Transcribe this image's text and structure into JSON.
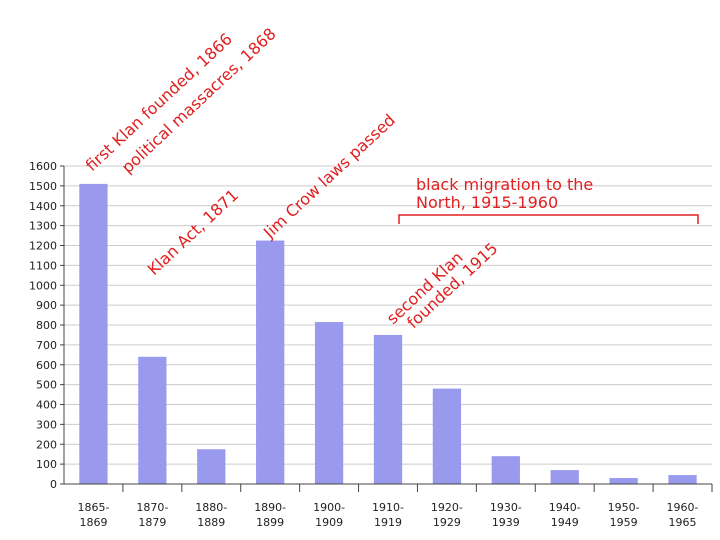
{
  "chart_data": {
    "type": "bar",
    "categories": [
      [
        "1865-",
        "1869"
      ],
      [
        "1870-",
        "1879"
      ],
      [
        "1880-",
        "1889"
      ],
      [
        "1890-",
        "1899"
      ],
      [
        "1900-",
        "1909"
      ],
      [
        "1910-",
        "1919"
      ],
      [
        "1920-",
        "1929"
      ],
      [
        "1930-",
        "1939"
      ],
      [
        "1940-",
        "1949"
      ],
      [
        "1950-",
        "1959"
      ],
      [
        "1960-",
        "1965"
      ]
    ],
    "values": [
      1510,
      640,
      175,
      1225,
      815,
      750,
      480,
      140,
      70,
      30,
      45
    ],
    "ylim": [
      0,
      1600
    ],
    "yticks": [
      0,
      100,
      200,
      300,
      400,
      500,
      600,
      700,
      800,
      900,
      1000,
      1100,
      1200,
      1300,
      1400,
      1500,
      1600
    ],
    "title": "",
    "xlabel": "",
    "ylabel": "",
    "grid": true,
    "colors": {
      "bar": "#9999ee",
      "annotation": "#e02020",
      "grid": "#cccccc",
      "axis": "#444444"
    },
    "annotations": [
      {
        "id": "ann-first-klan",
        "lines": [
          "first Klan founded, 1866"
        ]
      },
      {
        "id": "ann-political-massacres",
        "lines": [
          "political massacres, 1868"
        ]
      },
      {
        "id": "ann-klan-act",
        "lines": [
          "Klan Act, 1871"
        ]
      },
      {
        "id": "ann-jim-crow",
        "lines": [
          "Jim Crow laws passed"
        ]
      },
      {
        "id": "ann-second-klan",
        "lines": [
          "second Klan",
          "founded, 1915"
        ]
      },
      {
        "id": "ann-black-migration",
        "lines": [
          "black migration to the",
          "North, 1915-1960"
        ]
      }
    ]
  }
}
